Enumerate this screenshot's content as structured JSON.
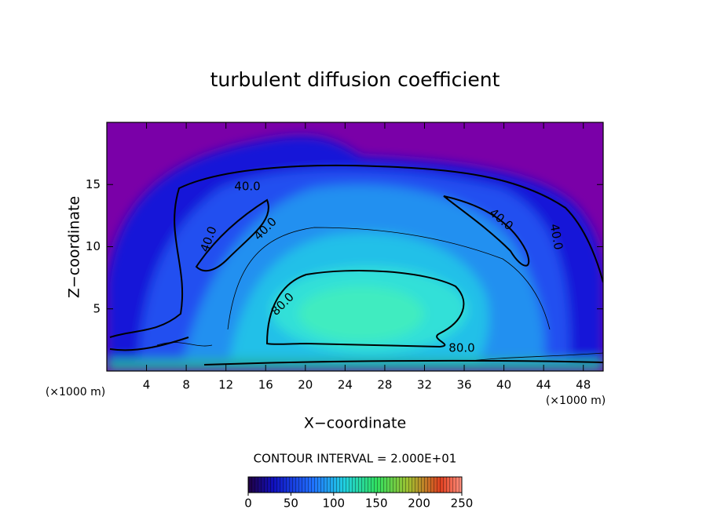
{
  "chart_data": {
    "type": "contour",
    "title": "turbulent diffusion coefficient",
    "xlabel": "X−coordinate",
    "ylabel": "Z−coordinate",
    "x_unit": "(×1000 m)",
    "y_unit": "(×1000 m)",
    "xlim": [
      0,
      50
    ],
    "xticks": [
      4,
      8,
      12,
      16,
      20,
      24,
      28,
      32,
      36,
      40,
      44,
      48
    ],
    "ylim": [
      0,
      20
    ],
    "yticks": [
      5,
      10,
      15
    ],
    "contour_levels": [
      {
        "value": 40,
        "label": "40.0"
      },
      {
        "value": 80,
        "label": "80.0"
      }
    ],
    "annotation": "CONTOUR INTERVAL = 2.000E+01",
    "colorbar": {
      "lim": [
        0,
        250
      ],
      "ticks": [
        0,
        50,
        100,
        150,
        200,
        250
      ]
    }
  }
}
